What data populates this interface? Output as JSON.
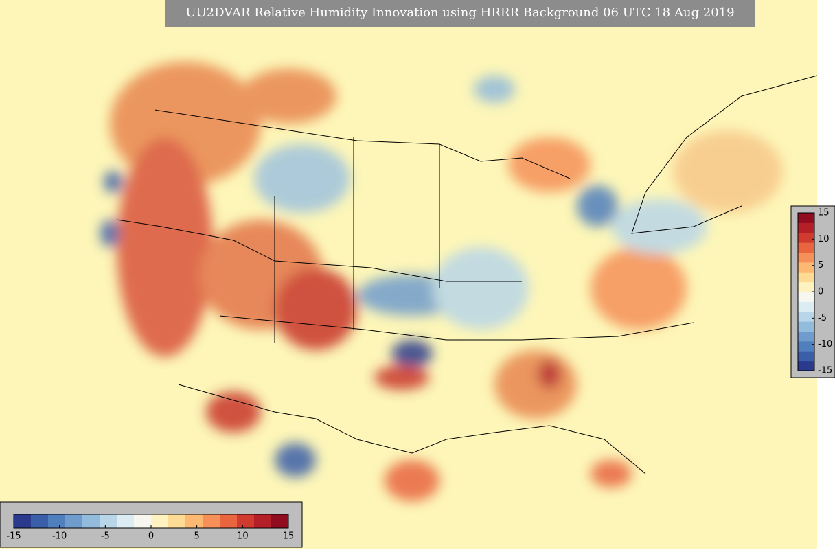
{
  "title": "UU2DVAR Relative Humidity Innovation using HRRR Background 06 UTC 18 Aug 2019",
  "colorbar": {
    "lim": [
      -15,
      15
    ],
    "ticks": [
      -15,
      -10,
      -5,
      0,
      5,
      10,
      15
    ],
    "colors": [
      "#2b3a8c",
      "#3a5fa8",
      "#4f7fbd",
      "#6f9ccd",
      "#93bbdb",
      "#b8d6e8",
      "#dbecf2",
      "#f7f7f0",
      "#fdf2c0",
      "#fddb94",
      "#fdb872",
      "#f59058",
      "#e8653f",
      "#d13a2f",
      "#b51f27",
      "#8f0d1f"
    ]
  }
}
